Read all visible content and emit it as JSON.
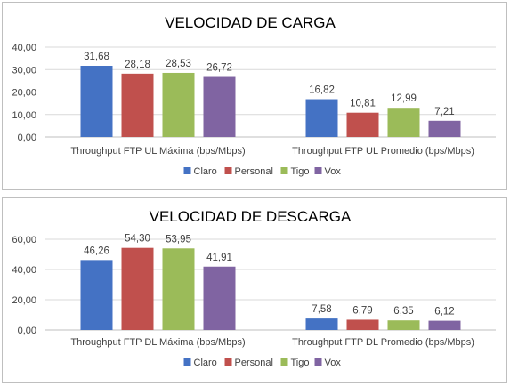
{
  "colors": {
    "Claro": "#4472C4",
    "Personal": "#C0504D",
    "Tigo": "#9BBB59",
    "Vox": "#8064A2"
  },
  "chart_data": [
    {
      "type": "bar",
      "title": "VELOCIDAD DE CARGA",
      "categories": [
        "Throughput FTP UL Máxima (bps/Mbps)",
        "Throughput FTP UL Promedio (bps/Mbps)"
      ],
      "series": [
        {
          "name": "Claro",
          "values": [
            31.68,
            16.82
          ],
          "labels": [
            "31,68",
            "16,82"
          ]
        },
        {
          "name": "Personal",
          "values": [
            28.18,
            10.81
          ],
          "labels": [
            "28,18",
            "10,81"
          ]
        },
        {
          "name": "Tigo",
          "values": [
            28.53,
            12.99
          ],
          "labels": [
            "28,53",
            "12,99"
          ]
        },
        {
          "name": "Vox",
          "values": [
            26.72,
            7.21
          ],
          "labels": [
            "26,72",
            "7,21"
          ]
        }
      ],
      "ylim": [
        0,
        40
      ],
      "yticks": [
        0,
        10,
        20,
        30,
        40
      ],
      "ytick_labels": [
        "0,00",
        "10,00",
        "20,00",
        "30,00",
        "40,00"
      ],
      "grid": true,
      "legend": "bottom"
    },
    {
      "type": "bar",
      "title": "VELOCIDAD DE DESCARGA",
      "categories": [
        "Throughput FTP DL Máxima (bps/Mbps)",
        "Throughput FTP DL Promedio (bps/Mbps)"
      ],
      "series": [
        {
          "name": "Claro",
          "values": [
            46.26,
            7.58
          ],
          "labels": [
            "46,26",
            "7,58"
          ]
        },
        {
          "name": "Personal",
          "values": [
            54.3,
            6.79
          ],
          "labels": [
            "54,30",
            "6,79"
          ]
        },
        {
          "name": "Tigo",
          "values": [
            53.95,
            6.35
          ],
          "labels": [
            "53,95",
            "6,35"
          ]
        },
        {
          "name": "Vox",
          "values": [
            41.91,
            6.12
          ],
          "labels": [
            "41,91",
            "6,12"
          ]
        }
      ],
      "ylim": [
        0,
        60
      ],
      "yticks": [
        0,
        20,
        40,
        60
      ],
      "ytick_labels": [
        "0,00",
        "20,00",
        "40,00",
        "60,00"
      ],
      "grid": true,
      "legend": "bottom"
    }
  ]
}
